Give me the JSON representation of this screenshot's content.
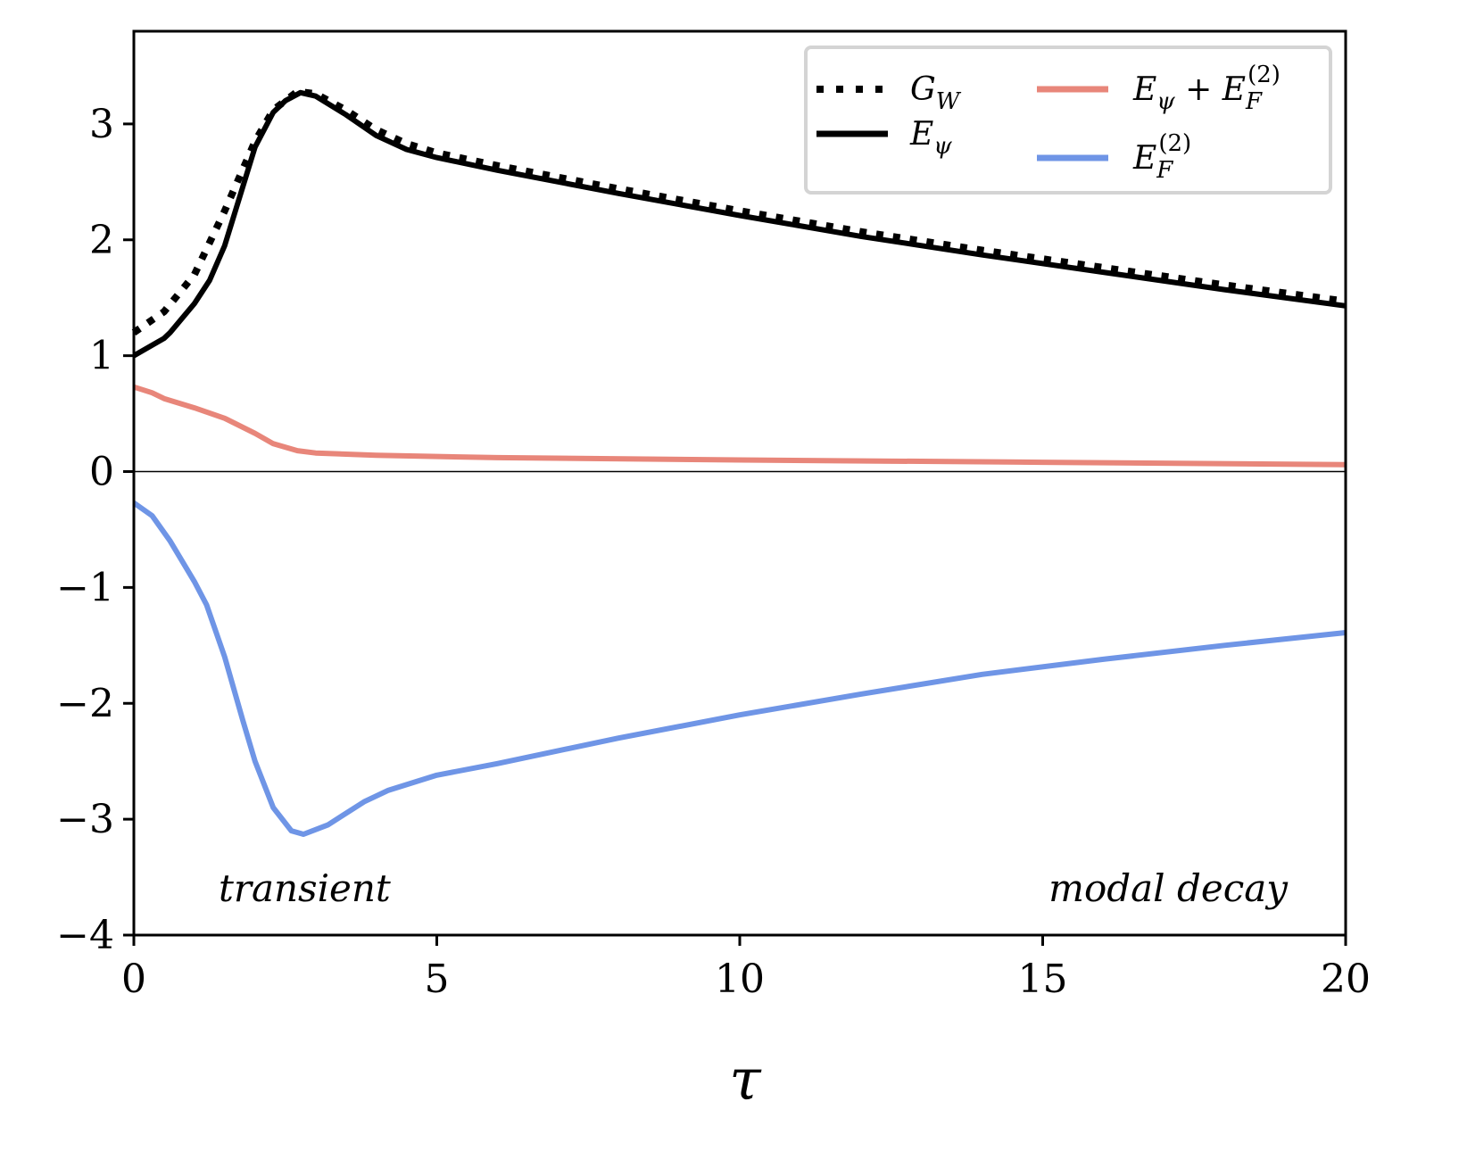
{
  "chart_data": {
    "type": "line",
    "title": "",
    "xlabel": "τ",
    "ylabel": "",
    "xlim": [
      0,
      20
    ],
    "ylim": [
      -4,
      3.8
    ],
    "xticks": [
      "0",
      "5",
      "10",
      "15",
      "20"
    ],
    "yticks": [
      "−4",
      "−3",
      "−2",
      "−1",
      "0",
      "1",
      "2",
      "3"
    ],
    "grid": false,
    "legend_position": "top-right",
    "annotations": [
      "transient",
      "modal decay"
    ],
    "series": [
      {
        "name": "G_W",
        "label_parts": [
          {
            "t": "G"
          },
          {
            "t": "W",
            "sub": true
          }
        ],
        "color": "#000000",
        "style": "dotted",
        "x": [
          0,
          0.5,
          1,
          1.5,
          2,
          2.3,
          2.7,
          3,
          3.5,
          4,
          4.5,
          5,
          6,
          8,
          10,
          12,
          14,
          16,
          18,
          20
        ],
        "y": [
          1.2,
          1.38,
          1.7,
          2.25,
          2.85,
          3.12,
          3.28,
          3.26,
          3.12,
          2.95,
          2.83,
          2.75,
          2.64,
          2.44,
          2.25,
          2.07,
          1.91,
          1.76,
          1.61,
          1.47
        ]
      },
      {
        "name": "E_ψ",
        "label_parts": [
          {
            "t": "E"
          },
          {
            "t": "ψ",
            "sub": true
          }
        ],
        "color": "#000000",
        "style": "solid",
        "x": [
          0,
          0.5,
          0.6,
          1,
          1.25,
          1.5,
          2,
          2.3,
          2.5,
          2.75,
          3,
          3.5,
          4,
          4.5,
          5,
          6,
          8,
          10,
          12,
          14,
          16,
          18,
          20
        ],
        "y": [
          1.0,
          1.15,
          1.2,
          1.45,
          1.65,
          1.95,
          2.8,
          3.1,
          3.2,
          3.27,
          3.24,
          3.08,
          2.9,
          2.78,
          2.71,
          2.6,
          2.4,
          2.21,
          2.03,
          1.87,
          1.72,
          1.57,
          1.43
        ]
      },
      {
        "name": "E_ψ + E_F^(2)",
        "label_parts": [
          {
            "t": "E"
          },
          {
            "t": "ψ",
            "sub": true
          },
          {
            "t": " + E"
          },
          {
            "t": "F",
            "sub": true
          },
          {
            "t": "(2)",
            "sup": true
          }
        ],
        "color": "#e8867a",
        "style": "solid",
        "x": [
          0,
          0.3,
          0.5,
          1,
          1.5,
          2,
          2.3,
          2.7,
          3,
          4,
          6,
          10,
          15,
          20
        ],
        "y": [
          0.73,
          0.68,
          0.63,
          0.55,
          0.46,
          0.33,
          0.24,
          0.18,
          0.16,
          0.14,
          0.12,
          0.1,
          0.08,
          0.06
        ]
      },
      {
        "name": "E_F^(2)",
        "label_parts": [
          {
            "t": "E"
          },
          {
            "t": "F",
            "sub": true
          },
          {
            "t": "(2)",
            "sup": true
          }
        ],
        "color": "#6f95e6",
        "style": "solid",
        "x": [
          0,
          0.3,
          0.6,
          1,
          1.2,
          1.5,
          1.8,
          2,
          2.3,
          2.6,
          2.8,
          3.2,
          3.8,
          4.2,
          5,
          6,
          8,
          10,
          12,
          14,
          16,
          18,
          20
        ],
        "y": [
          -0.27,
          -0.38,
          -0.6,
          -0.95,
          -1.15,
          -1.6,
          -2.15,
          -2.5,
          -2.9,
          -3.1,
          -3.13,
          -3.05,
          -2.85,
          -2.75,
          -2.62,
          -2.52,
          -2.3,
          -2.1,
          -1.92,
          -1.75,
          -1.62,
          -1.5,
          -1.39
        ]
      }
    ]
  }
}
